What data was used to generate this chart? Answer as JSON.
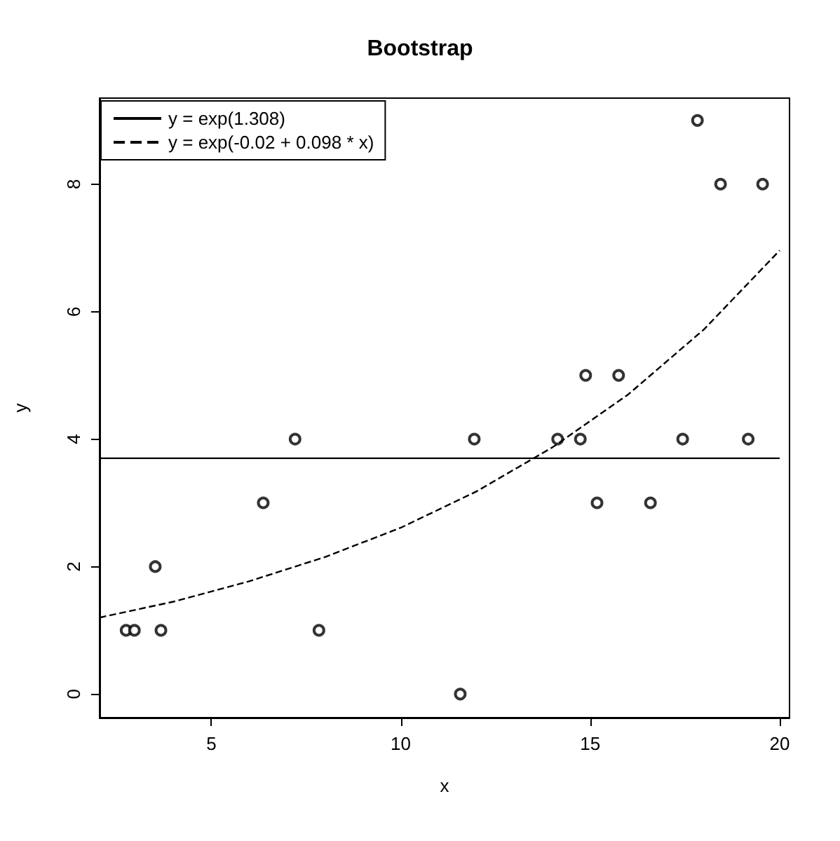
{
  "chart_data": {
    "type": "scatter",
    "title": "Bootstrap",
    "xlabel": "x",
    "ylabel": "y",
    "xlim": [
      2.05,
      20.26
    ],
    "ylim": [
      -0.37,
      9.35
    ],
    "xticks": [
      5,
      10,
      15,
      20
    ],
    "yticks": [
      0,
      2,
      4,
      6,
      8
    ],
    "grid": false,
    "legend": "top left",
    "marker": "circle",
    "series": [
      {
        "color": "#000000",
        "x": [
          2.75,
          2.97,
          3.52,
          3.67,
          6.37,
          7.21,
          7.84,
          11.57,
          11.94,
          14.14,
          14.74,
          14.88,
          15.18,
          15.75,
          16.59,
          17.44,
          17.83,
          18.44,
          19.17,
          19.55
        ],
        "values": [
          1,
          1,
          2,
          1,
          3,
          4,
          1,
          0,
          4,
          4,
          4,
          5,
          3,
          5,
          3,
          4,
          9,
          8,
          4,
          8
        ]
      },
      {
        "type": "line",
        "name": "y = exp(1.308)",
        "color": "#000000",
        "line_style": "solid",
        "marker": "none",
        "x": [
          2.05,
          20
        ],
        "values": [
          3.7,
          3.7
        ]
      },
      {
        "type": "line",
        "name": "y = exp(-0.02 + 0.098 * x)",
        "color": "#000000",
        "line_style": "dashed",
        "marker": "none",
        "x": [
          2.05,
          4,
          6,
          8,
          10,
          12,
          14,
          16,
          18,
          20
        ],
        "values": [
          1.2,
          1.45,
          1.77,
          2.15,
          2.61,
          3.18,
          3.87,
          4.7,
          5.72,
          6.96
        ]
      }
    ]
  }
}
